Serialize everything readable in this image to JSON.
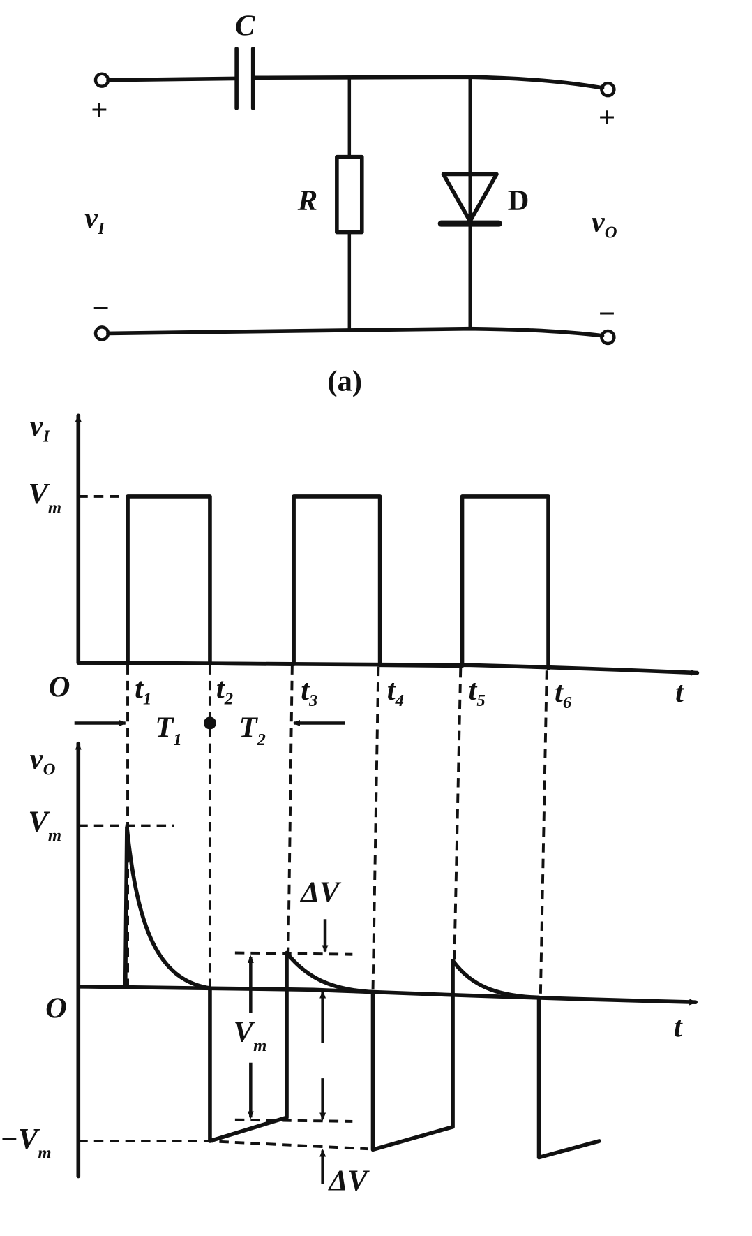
{
  "circuit": {
    "capacitor": "C",
    "resistor": "R",
    "diode": "D",
    "input": {
      "symbol": "v",
      "sub": "I"
    },
    "output": {
      "symbol": "v",
      "sub": "O"
    },
    "plus": "+",
    "minus": "−",
    "caption": "(a)"
  },
  "input_wave": {
    "ylabel": {
      "symbol": "v",
      "sub": "I"
    },
    "level": {
      "symbol": "V",
      "sub": "m"
    },
    "origin": "O",
    "xlabel": "t",
    "ticks": [
      {
        "symbol": "t",
        "sub": "1"
      },
      {
        "symbol": "t",
        "sub": "2"
      },
      {
        "symbol": "t",
        "sub": "3"
      },
      {
        "symbol": "t",
        "sub": "4"
      },
      {
        "symbol": "t",
        "sub": "5"
      },
      {
        "symbol": "t",
        "sub": "6"
      }
    ],
    "T1": {
      "symbol": "T",
      "sub": "1"
    },
    "T2": {
      "symbol": "T",
      "sub": "2"
    }
  },
  "output_wave": {
    "ylabel": {
      "symbol": "v",
      "sub": "O"
    },
    "pos_level": {
      "symbol": "V",
      "sub": "m"
    },
    "neg_level": {
      "symbol": "−V",
      "sub": "m"
    },
    "origin": "O",
    "xlabel": "t",
    "span_label": {
      "symbol": "V",
      "sub": "m"
    },
    "delta_top": "ΔV",
    "delta_bottom": "ΔV"
  }
}
